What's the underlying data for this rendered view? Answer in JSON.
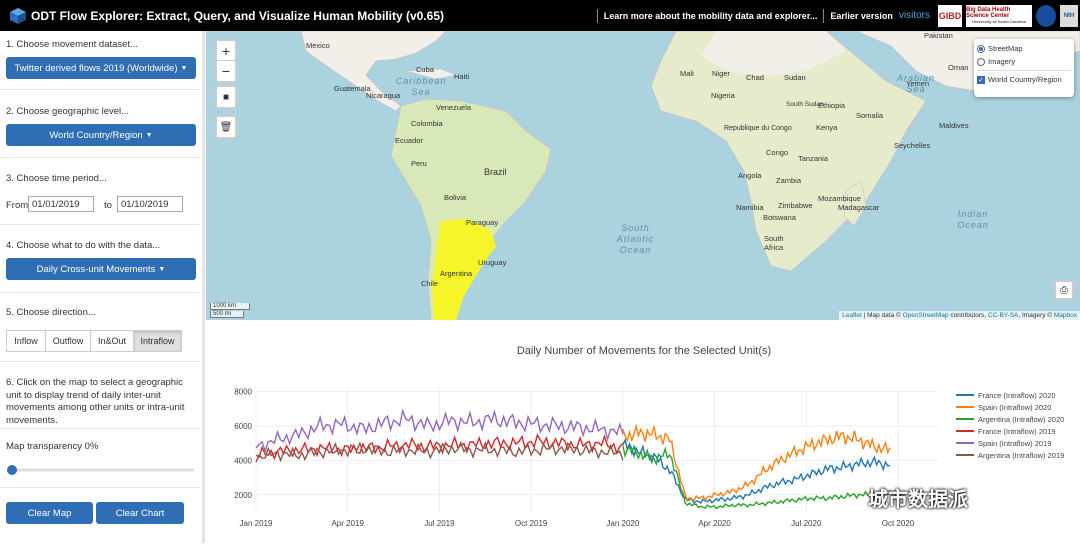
{
  "app": {
    "title": "ODT Flow Explorer: Extract, Query, and Visualize Human Mobility (v0.65)",
    "nav": {
      "learn_more": "Learn more about the mobility data and explorer...",
      "earlier_version": "Earlier version",
      "visitors": "visitors"
    },
    "logos": {
      "gibd": "GIBD",
      "bdhsc": "Big Data Health Science Center",
      "bdhsc_sub": "University of South Carolina",
      "nih": "NIH"
    }
  },
  "sidebar": {
    "step1": {
      "label": "1. Choose movement dataset...",
      "button": "Twitter derived flows 2019 (Worldwide)"
    },
    "step2": {
      "label": "2. Choose geographic level...",
      "button": "World Country/Region"
    },
    "step3": {
      "label": "3. Choose time period...",
      "from_label": "From",
      "from_value": "01/01/2019",
      "to_label": "to",
      "to_value": "01/10/2019"
    },
    "step4": {
      "label": "4. Choose what to do with the data...",
      "button": "Daily Cross-unit Movements"
    },
    "step5": {
      "label": "5. Choose direction...",
      "options": [
        "Inflow",
        "Outflow",
        "In&Out",
        "Intraflow"
      ],
      "selected": "Intraflow"
    },
    "step6": {
      "label": "6. Click on the map to select a geographic unit to display trend of daily inter-unit movements among other units or intra-unit movements."
    },
    "transparency": {
      "label": "Map transparency 0%",
      "value": 0
    },
    "clear_map": "Clear Map",
    "clear_chart": "Clear Chart"
  },
  "map": {
    "layers": {
      "streetmap": "StreetMap",
      "imagery": "Imagery",
      "overlay": "World Country/Region",
      "base_selected": "StreetMap",
      "overlay_checked": true
    },
    "scale": {
      "km": "1000 km",
      "mi": "500 mi"
    },
    "attribution": {
      "leaflet": "Leaflet",
      "text1": "| Map data ©",
      "osm": "OpenStreetMap",
      "text2": "contributors,",
      "license": "CC-BY-SA",
      "text3": ", Imagery ©",
      "mapbox": "Mapbox"
    },
    "highlight_color": "#f5f52a",
    "countries": [
      "Pakistan",
      "Mexico",
      "Cuba",
      "Haiti",
      "Guatemala",
      "Nicaragua",
      "Venezuela",
      "Colombia",
      "Ecuador",
      "Peru",
      "Brazil",
      "Bolivia",
      "Paraguay",
      "Chile",
      "Argentina",
      "Uruguay",
      "Mali",
      "Niger",
      "Chad",
      "Sudan",
      "Nigeria",
      "Ethiopia",
      "South Sudan",
      "Somalia",
      "Kenya",
      "Tanzania",
      "Republique du Congo",
      "Congo",
      "Angola",
      "Zambia",
      "Namibia",
      "Botswana",
      "Zimbabwe",
      "Mozambique",
      "Madagascar",
      "South Africa",
      "Oman",
      "Yemen",
      "Maldives",
      "Seychelles"
    ],
    "oceans": {
      "caribbean": "Caribbean Sea",
      "arabian": "Arabian Sea",
      "south_atlantic": "South Atlantic Ocean",
      "indian": "Indian Ocean"
    }
  },
  "chart_data": {
    "type": "line",
    "title": "Daily Number of Movements for the Selected Unit(s)",
    "xlabel": "",
    "ylabel": "",
    "ylim": [
      1000,
      8200
    ],
    "yticks": [
      2000,
      4000,
      6000,
      8000
    ],
    "xticks": [
      "Jan 2019",
      "Apr 2019",
      "Jul 2019",
      "Oct 2019",
      "Jan 2020",
      "Apr 2020",
      "Jul 2020",
      "Oct 2020"
    ],
    "grid": true,
    "legend_position": "right",
    "series": [
      {
        "name": "France (Intraflow) 2020",
        "color": "#1f77b4",
        "year": 2020,
        "values": [
          4900,
          4500,
          4200,
          3400,
          1700,
          1600,
          1700,
          1800,
          2000,
          2400,
          2700,
          2900,
          3200,
          3500,
          3600,
          3800,
          3900,
          3700
        ]
      },
      {
        "name": "Spain (Intraflow) 2020",
        "color": "#ff7f0e",
        "year": 2020,
        "values": [
          5400,
          5600,
          5500,
          5200,
          1800,
          1800,
          2000,
          2200,
          2600,
          3400,
          4000,
          4500,
          4900,
          5200,
          5400,
          5200,
          4800,
          4600
        ]
      },
      {
        "name": "Argentina (Intraflow) 2020",
        "color": "#2ca02c",
        "year": 2020,
        "values": [
          4700,
          4400,
          4100,
          4400,
          1500,
          1300,
          1300,
          1400,
          1400,
          1500,
          1600,
          1700,
          1800,
          1800,
          1900,
          2000,
          2000,
          2200
        ]
      },
      {
        "name": "France (Intraflow) 2019",
        "color": "#d62728",
        "year": 2019,
        "values": [
          4300,
          4500,
          4600,
          4700,
          4600,
          4700,
          4800,
          4900,
          4800,
          4900,
          4900,
          5000,
          5000,
          5100,
          5000,
          4900,
          5000,
          4700
        ]
      },
      {
        "name": "Spain (Intraflow) 2019",
        "color": "#9467bd",
        "year": 2019,
        "values": [
          4800,
          5200,
          5500,
          6000,
          6100,
          5800,
          6200,
          6400,
          6000,
          6300,
          6200,
          6400,
          6200,
          6100,
          6000,
          5900,
          5800,
          5600
        ]
      },
      {
        "name": "Argentina (Intraflow) 2019",
        "color": "#8c564b",
        "year": 2019,
        "values": [
          4200,
          4400,
          4300,
          4500,
          4600,
          4700,
          4500,
          4600,
          4500,
          4700,
          4600,
          4600,
          4500,
          4600,
          4700,
          4600,
          4500,
          4400
        ]
      }
    ]
  },
  "watermark": "城市数据派"
}
